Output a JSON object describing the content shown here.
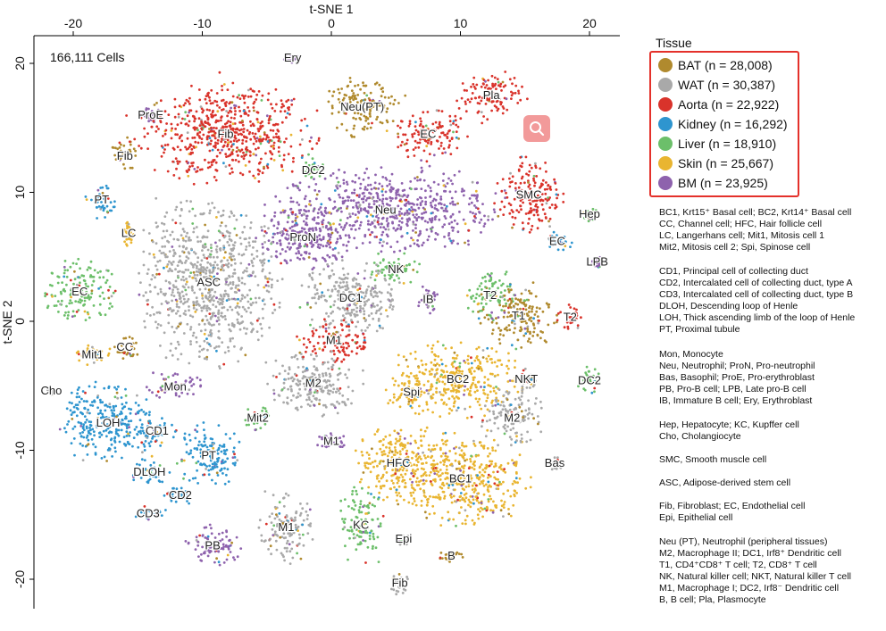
{
  "chart_data": {
    "type": "scatter",
    "xlabel": "t-SNE 1",
    "ylabel": "t-SNE 2",
    "xlim": [
      -23,
      22.5
    ],
    "ylim": [
      -22.5,
      22.5
    ],
    "xticks": [
      -20,
      -10,
      0,
      10,
      20
    ],
    "yticks": [
      20,
      10,
      0,
      -10,
      -20
    ],
    "x_axis_position": "top",
    "annotation": "166,111 Cells",
    "legend": {
      "title": "Tissue",
      "position": "right",
      "entries": [
        {
          "label": "BAT (n = 28,008)",
          "color": "#b08a2e"
        },
        {
          "label": "WAT (n = 30,387)",
          "color": "#a9a9a9"
        },
        {
          "label": "Aorta (n = 22,922)",
          "color": "#d9332b"
        },
        {
          "label": "Kidney (n = 16,292)",
          "color": "#2e95cf"
        },
        {
          "label": "Liver (n = 18,910)",
          "color": "#6cbf6a"
        },
        {
          "label": "Skin (n = 25,667)",
          "color": "#e9b531"
        },
        {
          "label": "BM (n = 23,925)",
          "color": "#8e62ad"
        }
      ]
    },
    "clusters": [
      {
        "label": "Ery",
        "x": -3,
        "y": 20.4,
        "rx": 0.7,
        "ry": 0.4,
        "tissue": 6
      },
      {
        "label": "ProE",
        "x": -14,
        "y": 16,
        "rx": 0.8,
        "ry": 0.6,
        "tissue": 6
      },
      {
        "label": "Fib",
        "x": -8.2,
        "y": 14.5,
        "rx": 7,
        "ry": 4,
        "tissue": 2
      },
      {
        "label": "Neu(PT)",
        "x": 2.4,
        "y": 16.6,
        "rx": 3,
        "ry": 2.3,
        "tissue": 0
      },
      {
        "label": "Pla",
        "x": 12.4,
        "y": 17.5,
        "rx": 2.8,
        "ry": 1.8,
        "tissue": 2
      },
      {
        "label": "EC",
        "x": 7.5,
        "y": 14.5,
        "rx": 3,
        "ry": 2,
        "tissue": 2
      },
      {
        "label": "Fib",
        "x": -16,
        "y": 12.8,
        "rx": 1,
        "ry": 1.7,
        "tissue": 0
      },
      {
        "label": "DC2",
        "x": -1.4,
        "y": 11.7,
        "rx": 1.1,
        "ry": 1.3,
        "tissue": 4
      },
      {
        "label": "Neu",
        "x": 4.2,
        "y": 8.6,
        "rx": 9,
        "ry": 3.3,
        "tissue": 6
      },
      {
        "label": "SMC",
        "x": 15.3,
        "y": 9.8,
        "rx": 2.7,
        "ry": 3,
        "tissue": 2
      },
      {
        "label": "PT",
        "x": -17.8,
        "y": 9.4,
        "rx": 1.3,
        "ry": 1.4,
        "tissue": 3
      },
      {
        "label": "Hep",
        "x": 20,
        "y": 8.3,
        "rx": 0.6,
        "ry": 0.6,
        "tissue": 4
      },
      {
        "label": "LC",
        "x": -15.7,
        "y": 6.8,
        "rx": 0.5,
        "ry": 1.1,
        "tissue": 5
      },
      {
        "label": "ProN",
        "x": -2.2,
        "y": 6.5,
        "rx": 3.8,
        "ry": 2.5,
        "tissue": 6
      },
      {
        "label": "EC",
        "x": 17.5,
        "y": 6.2,
        "rx": 1.3,
        "ry": 0.8,
        "tissue": 3
      },
      {
        "label": "LPB",
        "x": 20.6,
        "y": 4.6,
        "rx": 0.5,
        "ry": 0.5,
        "tissue": 6
      },
      {
        "label": "ASC",
        "x": -9.5,
        "y": 3,
        "rx": 5.5,
        "ry": 6.5,
        "tissue": 1
      },
      {
        "label": "NK",
        "x": 5,
        "y": 4,
        "rx": 2,
        "ry": 1.3,
        "tissue": 4
      },
      {
        "label": "EC",
        "x": -19.5,
        "y": 2.3,
        "rx": 2.8,
        "ry": 2.5,
        "tissue": 4
      },
      {
        "label": "DC1",
        "x": 1.5,
        "y": 1.8,
        "rx": 4,
        "ry": 3,
        "tissue": 1
      },
      {
        "label": "T2",
        "x": 12.3,
        "y": 2,
        "rx": 2,
        "ry": 2,
        "tissue": 4
      },
      {
        "label": "IB",
        "x": 7.5,
        "y": 1.7,
        "rx": 0.9,
        "ry": 1.2,
        "tissue": 6
      },
      {
        "label": "T1",
        "x": 14.5,
        "y": 0.4,
        "rx": 3,
        "ry": 2.5,
        "tissue": 0
      },
      {
        "label": "T2",
        "x": 18.5,
        "y": 0.3,
        "rx": 1,
        "ry": 1,
        "tissue": 2
      },
      {
        "label": "M1",
        "x": 0.2,
        "y": -1.5,
        "rx": 3,
        "ry": 1.7,
        "tissue": 2
      },
      {
        "label": "CC",
        "x": -16,
        "y": -2,
        "rx": 1.3,
        "ry": 1,
        "tissue": 0
      },
      {
        "label": "Mit1",
        "x": -18.5,
        "y": -2.6,
        "rx": 1.6,
        "ry": 0.9,
        "tissue": 5
      },
      {
        "label": "M2",
        "x": -1.4,
        "y": -4.8,
        "rx": 3.7,
        "ry": 2.6,
        "tissue": 1
      },
      {
        "label": "NKT",
        "x": 15.1,
        "y": -4.5,
        "rx": 0.8,
        "ry": 0.8,
        "tissue": 1
      },
      {
        "label": "DC2",
        "x": 20,
        "y": -4.6,
        "rx": 1,
        "ry": 1.2,
        "tissue": 4
      },
      {
        "label": "Cho",
        "x": -21.7,
        "y": -5.4,
        "rx": 0.3,
        "ry": 0.3,
        "tissue": 1
      },
      {
        "label": "Mon",
        "x": -12.1,
        "y": -5.1,
        "rx": 2.3,
        "ry": 1.1,
        "tissue": 6
      },
      {
        "label": "BC2",
        "x": 9.8,
        "y": -4.5,
        "rx": 5,
        "ry": 3,
        "tissue": 5
      },
      {
        "label": "Spi",
        "x": 6.2,
        "y": -5.5,
        "rx": 2,
        "ry": 1.6,
        "tissue": 5
      },
      {
        "label": "LOH",
        "x": -17.3,
        "y": -7.9,
        "rx": 3.8,
        "ry": 3.3,
        "tissue": 3
      },
      {
        "label": "M2",
        "x": 14,
        "y": -7.5,
        "rx": 2.5,
        "ry": 2.3,
        "tissue": 1
      },
      {
        "label": "Mit2",
        "x": -5.7,
        "y": -7.5,
        "rx": 1,
        "ry": 1.2,
        "tissue": 4
      },
      {
        "label": "CD1",
        "x": -13.5,
        "y": -8.5,
        "rx": 1.5,
        "ry": 1.3,
        "tissue": 3
      },
      {
        "label": "M1",
        "x": 0,
        "y": -9.3,
        "rx": 1.2,
        "ry": 0.6,
        "tissue": 6
      },
      {
        "label": "PT",
        "x": -9.5,
        "y": -10.4,
        "rx": 2.5,
        "ry": 2.6,
        "tissue": 3
      },
      {
        "label": "HFC",
        "x": 5.2,
        "y": -11,
        "rx": 3.5,
        "ry": 3,
        "tissue": 5
      },
      {
        "label": "BC1",
        "x": 10,
        "y": -12.2,
        "rx": 5.5,
        "ry": 3.6,
        "tissue": 5
      },
      {
        "label": "Bas",
        "x": 17.3,
        "y": -11,
        "rx": 0.6,
        "ry": 0.6,
        "tissue": 1
      },
      {
        "label": "DLOH",
        "x": -14.1,
        "y": -11.7,
        "rx": 1.5,
        "ry": 1.2,
        "tissue": 3
      },
      {
        "label": "CD2",
        "x": -11.7,
        "y": -13.5,
        "rx": 1.3,
        "ry": 0.7,
        "tissue": 3
      },
      {
        "label": "CD3",
        "x": -14.2,
        "y": -14.9,
        "rx": 1.3,
        "ry": 0.7,
        "tissue": 3
      },
      {
        "label": "PB",
        "x": -9.2,
        "y": -17.4,
        "rx": 2.5,
        "ry": 1.6,
        "tissue": 6
      },
      {
        "label": "M1",
        "x": -3.5,
        "y": -16,
        "rx": 2.2,
        "ry": 2.8,
        "tissue": 1
      },
      {
        "label": "KC",
        "x": 2.3,
        "y": -15.8,
        "rx": 1.7,
        "ry": 3,
        "tissue": 4
      },
      {
        "label": "Epi",
        "x": 5.6,
        "y": -16.9,
        "rx": 0.5,
        "ry": 0.5,
        "tissue": 1
      },
      {
        "label": "B",
        "x": 9.3,
        "y": -18.2,
        "rx": 1,
        "ry": 0.5,
        "tissue": 0
      },
      {
        "label": "Fib",
        "x": 5.3,
        "y": -20.3,
        "rx": 0.7,
        "ry": 1,
        "tissue": 1
      }
    ]
  },
  "abbreviation_notes": [
    [
      "BC1, Krt15⁺ Basal cell; BC2, Krt14⁺ Basal cell",
      "CC, Channel cell; HFC, Hair follicle cell",
      "LC, Langerhans cell; Mit1, Mitosis cell 1",
      "Mit2, Mitosis cell 2; Spi, Spinose cell"
    ],
    [
      "CD1, Principal cell of collecting duct",
      "CD2, Intercalated cell of collecting duct, type A",
      "CD3, Intercalated cell of collecting duct, type B",
      "DLOH, Descending loop of Henle",
      "LOH, Thick ascending limb of the loop of Henle",
      "PT, Proximal tubule"
    ],
    [
      "Mon, Monocyte",
      "Neu, Neutrophil; ProN, Pro-neutrophil",
      "Bas, Basophil; ProE, Pro-erythroblast",
      "PB, Pro-B cell; LPB, Late pro-B cell",
      "IB, Immature B cell; Ery, Erythroblast"
    ],
    [
      "Hep, Hepatocyte; KC, Kupffer cell",
      "Cho, Cholangiocyte"
    ],
    [
      "SMC, Smooth muscle cell"
    ],
    [
      "ASC, Adipose-derived stem cell"
    ],
    [
      "Fib, Fibroblast; EC, Endothelial cell",
      "Epi, Epithelial cell"
    ],
    [
      "Neu (PT), Neutrophil (peripheral tissues)",
      "M2, Macrophage II; DC1, Irf8⁺ Dendritic cell",
      "T1, CD4⁺CD8⁺ T cell; T2, CD8⁺ T cell",
      "NK, Natural killer cell; NKT, Natural killer T cell",
      "M1, Macrophage I; DC2, Irf8⁻ Dendritic cell",
      "B, B cell; Pla, Plasmocyte"
    ]
  ],
  "search_button": {
    "icon": "search-icon",
    "color": "#f29a9a"
  }
}
